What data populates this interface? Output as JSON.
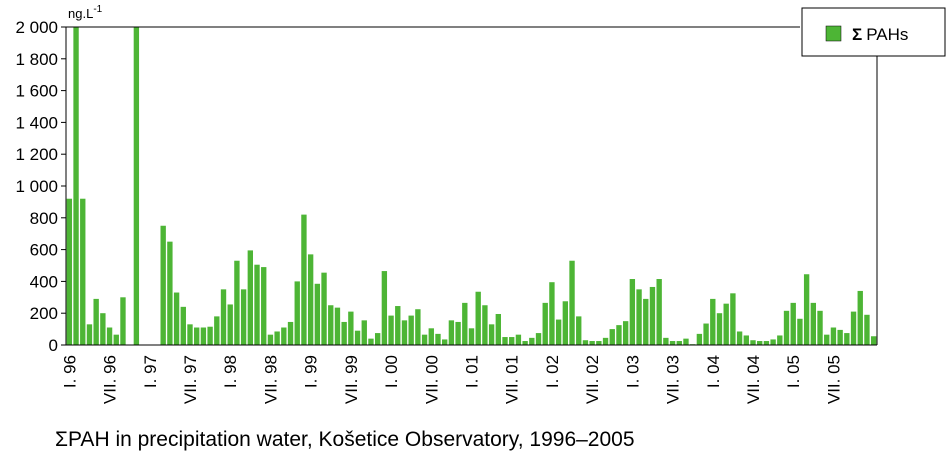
{
  "chart_data": {
    "type": "bar",
    "unit_label": "ng.L",
    "unit_exponent": "-1",
    "ylim": [
      0,
      2000
    ],
    "yticks": [
      0,
      200,
      400,
      600,
      800,
      1000,
      1200,
      1400,
      1600,
      1800,
      2000
    ],
    "ytick_labels": [
      "0",
      "200",
      "400",
      "600",
      "800",
      "1 000",
      "1 200",
      "1 400",
      "1 600",
      "1 800",
      "2 000"
    ],
    "grid": false,
    "legend_position": "top-right",
    "bar_color": "#4db535",
    "series": [
      {
        "name": "Σ PAHs",
        "legend_symbol": "Σ",
        "legend_text": "PAHs",
        "values": [
          920,
          2000,
          920,
          130,
          290,
          200,
          110,
          65,
          300,
          null,
          2000,
          null,
          null,
          null,
          750,
          650,
          330,
          240,
          130,
          110,
          110,
          115,
          180,
          350,
          255,
          530,
          350,
          595,
          505,
          490,
          65,
          85,
          110,
          145,
          400,
          820,
          570,
          385,
          455,
          250,
          235,
          145,
          210,
          90,
          155,
          40,
          75,
          465,
          185,
          245,
          155,
          185,
          225,
          65,
          105,
          70,
          35,
          155,
          145,
          265,
          105,
          335,
          250,
          130,
          195,
          50,
          50,
          65,
          25,
          45,
          75,
          265,
          395,
          160,
          275,
          530,
          180,
          30,
          25,
          25,
          45,
          100,
          125,
          150,
          415,
          350,
          290,
          365,
          415,
          45,
          25,
          25,
          40,
          5,
          70,
          135,
          290,
          200,
          260,
          325,
          85,
          60,
          30,
          25,
          25,
          35,
          60,
          215,
          265,
          165,
          445,
          265,
          215,
          65,
          110,
          95,
          75,
          210,
          340,
          190,
          55
        ]
      }
    ],
    "x_tick_labels": [
      {
        "bar": 0,
        "label": "I. 96"
      },
      {
        "bar": 6,
        "label": "VII. 96"
      },
      {
        "bar": 12,
        "label": "I. 97"
      },
      {
        "bar": 18,
        "label": "VII. 97"
      },
      {
        "bar": 24,
        "label": "I. 98"
      },
      {
        "bar": 30,
        "label": "VII. 98"
      },
      {
        "bar": 36,
        "label": "I. 99"
      },
      {
        "bar": 42,
        "label": "VII. 99"
      },
      {
        "bar": 48,
        "label": "I. 00"
      },
      {
        "bar": 54,
        "label": "VII. 00"
      },
      {
        "bar": 60,
        "label": "I. 01"
      },
      {
        "bar": 66,
        "label": "VII. 01"
      },
      {
        "bar": 72,
        "label": "I. 02"
      },
      {
        "bar": 78,
        "label": "VII. 02"
      },
      {
        "bar": 84,
        "label": "I. 03"
      },
      {
        "bar": 90,
        "label": "VII. 03"
      },
      {
        "bar": 96,
        "label": "I. 04"
      },
      {
        "bar": 102,
        "label": "VII. 04"
      },
      {
        "bar": 108,
        "label": "I. 05"
      },
      {
        "bar": 114,
        "label": "VII. 05"
      }
    ]
  },
  "caption": {
    "symbol": "Σ",
    "text": "PAH in precipitation water, Košetice Observatory, 1996–2005"
  }
}
